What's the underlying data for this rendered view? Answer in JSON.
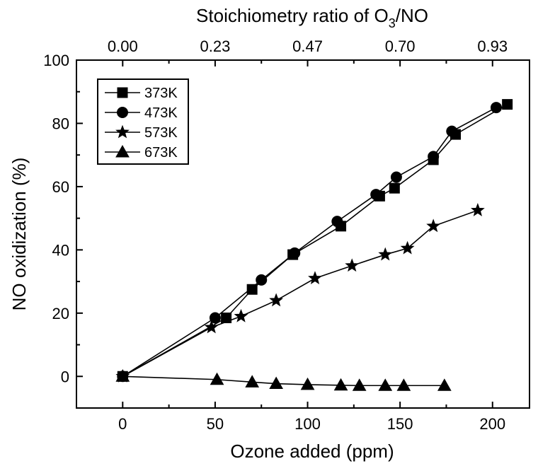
{
  "chart_data": {
    "type": "line",
    "xlabel": "Ozone added (ppm)",
    "ylabel": "NO oxidization (%)",
    "top_xlabel": {
      "main": "Stoichiometry ratio of O",
      "subscript": "3",
      "tail": "/NO"
    },
    "xlim": [
      -25,
      220
    ],
    "ylim": [
      -10,
      100
    ],
    "x_ticks": [
      0,
      50,
      100,
      150,
      200
    ],
    "y_ticks": [
      0,
      20,
      40,
      60,
      80,
      100
    ],
    "x_minor_ticks": [
      -25,
      25,
      75,
      125,
      175
    ],
    "y_minor_ticks": [
      -10,
      10,
      30,
      50,
      70,
      90
    ],
    "top_ticks": [
      {
        "x": 0,
        "label": "0.00"
      },
      {
        "x": 50,
        "label": "0.23"
      },
      {
        "x": 100,
        "label": "0.47"
      },
      {
        "x": 150,
        "label": "0.70"
      },
      {
        "x": 200,
        "label": "0.93"
      }
    ],
    "legend_position": "top-left",
    "grid": false,
    "series": [
      {
        "name": "373K",
        "marker": "square",
        "points": [
          [
            0,
            0
          ],
          [
            56,
            18.5
          ],
          [
            70,
            27.5
          ],
          [
            92,
            38.5
          ],
          [
            118,
            47.5
          ],
          [
            139,
            57
          ],
          [
            147,
            59.5
          ],
          [
            168,
            68.5
          ],
          [
            180,
            76.5
          ],
          [
            208,
            86
          ]
        ]
      },
      {
        "name": "473K",
        "marker": "circle",
        "points": [
          [
            0,
            0
          ],
          [
            50,
            18.5
          ],
          [
            75,
            30.5
          ],
          [
            93,
            39
          ],
          [
            116,
            49
          ],
          [
            137,
            57.5
          ],
          [
            148,
            63
          ],
          [
            168,
            69.5
          ],
          [
            178,
            77.5
          ],
          [
            202,
            85
          ]
        ]
      },
      {
        "name": "573K",
        "marker": "star",
        "points": [
          [
            0,
            0
          ],
          [
            48,
            15.5
          ],
          [
            64,
            19
          ],
          [
            83,
            24
          ],
          [
            104,
            31
          ],
          [
            124,
            35
          ],
          [
            142,
            38.5
          ],
          [
            154,
            40.5
          ],
          [
            168,
            47.5
          ],
          [
            192,
            52.5
          ]
        ]
      },
      {
        "name": "673K",
        "marker": "triangle",
        "points": [
          [
            0,
            0
          ],
          [
            51,
            -1
          ],
          [
            70,
            -1.8
          ],
          [
            83,
            -2.3
          ],
          [
            100,
            -2.6
          ],
          [
            118,
            -2.8
          ],
          [
            128,
            -2.9
          ],
          [
            142,
            -2.9
          ],
          [
            152,
            -2.9
          ],
          [
            174,
            -2.9
          ]
        ]
      }
    ]
  }
}
